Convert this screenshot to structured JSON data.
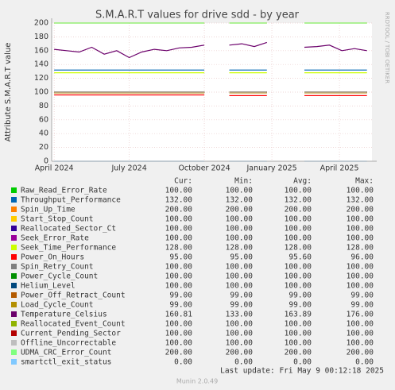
{
  "chart_data": {
    "type": "line",
    "title": "S.M.A.R.T values for drive sdd - by year",
    "y_label": "Attribute S.M.A.R.T value",
    "side_label": "RRDTOOL / TOBI OETIKER",
    "last_update": "Last update: Fri May  9 00:12:18 2025",
    "footer": "Munin 2.0.49",
    "columns": [
      "Cur:",
      "Min:",
      "Avg:",
      "Max:"
    ],
    "ylim": [
      0,
      200
    ],
    "yticks": [
      0,
      20,
      40,
      60,
      80,
      100,
      120,
      140,
      160,
      180,
      200
    ],
    "xlim": [
      -0.1,
      12.7
    ],
    "xticks": [
      {
        "value": 0,
        "label": "April 2024"
      },
      {
        "value": 3,
        "label": "July 2024"
      },
      {
        "value": 6,
        "label": "October 2024"
      },
      {
        "value": 8.7,
        "label": "January 2025"
      },
      {
        "value": 11.4,
        "label": "April 2025"
      }
    ],
    "grid": true,
    "x": [
      0,
      0.5,
      1,
      1.5,
      2,
      2.5,
      3,
      3.5,
      4,
      4.5,
      5,
      5.5,
      6,
      6.5,
      7,
      7.5,
      8,
      8.5,
      9,
      9.5,
      10,
      10.5,
      11,
      11.5,
      12,
      12.5
    ],
    "series": [
      {
        "name": "Raw_Read_Error_Rate",
        "color": "#00cc00",
        "cur": "100.00",
        "min": "100.00",
        "avg": "100.00",
        "max": "100.00",
        "values": [
          100,
          100,
          100,
          100,
          100,
          100,
          100,
          100,
          100,
          100,
          100,
          100,
          100,
          null,
          100,
          100,
          100,
          100,
          null,
          null,
          100,
          100,
          100,
          100,
          100,
          100
        ]
      },
      {
        "name": "Throughput_Performance",
        "color": "#0066b3",
        "cur": "132.00",
        "min": "132.00",
        "avg": "132.00",
        "max": "132.00",
        "values": [
          132,
          132,
          132,
          132,
          132,
          132,
          132,
          132,
          132,
          132,
          132,
          132,
          132,
          null,
          132,
          132,
          132,
          132,
          null,
          null,
          132,
          132,
          132,
          132,
          132,
          132
        ]
      },
      {
        "name": "Spin_Up_Time",
        "color": "#ff8000",
        "cur": "200.00",
        "min": "200.00",
        "avg": "200.00",
        "max": "200.00",
        "values": [
          200,
          200,
          200,
          200,
          200,
          200,
          200,
          200,
          200,
          200,
          200,
          200,
          200,
          null,
          200,
          200,
          200,
          200,
          null,
          null,
          200,
          200,
          200,
          200,
          200,
          200
        ]
      },
      {
        "name": "Start_Stop_Count",
        "color": "#ffcc00",
        "cur": "100.00",
        "min": "100.00",
        "avg": "100.00",
        "max": "100.00",
        "values": [
          100,
          100,
          100,
          100,
          100,
          100,
          100,
          100,
          100,
          100,
          100,
          100,
          100,
          null,
          100,
          100,
          100,
          100,
          null,
          null,
          100,
          100,
          100,
          100,
          100,
          100
        ]
      },
      {
        "name": "Reallocated_Sector_Ct",
        "color": "#330099",
        "cur": "100.00",
        "min": "100.00",
        "avg": "100.00",
        "max": "100.00",
        "values": [
          100,
          100,
          100,
          100,
          100,
          100,
          100,
          100,
          100,
          100,
          100,
          100,
          100,
          null,
          100,
          100,
          100,
          100,
          null,
          null,
          100,
          100,
          100,
          100,
          100,
          100
        ]
      },
      {
        "name": "Seek_Error_Rate",
        "color": "#990099",
        "cur": "100.00",
        "min": "100.00",
        "avg": "100.00",
        "max": "100.00",
        "values": [
          100,
          100,
          100,
          100,
          100,
          100,
          100,
          100,
          100,
          100,
          100,
          100,
          100,
          null,
          100,
          100,
          100,
          100,
          null,
          null,
          100,
          100,
          100,
          100,
          100,
          100
        ]
      },
      {
        "name": "Seek_Time_Performance",
        "color": "#ccff00",
        "cur": "128.00",
        "min": "128.00",
        "avg": "128.00",
        "max": "128.00",
        "values": [
          128,
          128,
          128,
          128,
          128,
          128,
          128,
          128,
          128,
          128,
          128,
          128,
          128,
          null,
          128,
          128,
          128,
          128,
          null,
          null,
          128,
          128,
          128,
          128,
          128,
          128
        ]
      },
      {
        "name": "Power_On_Hours",
        "color": "#ff0000",
        "cur": "95.00",
        "min": "95.00",
        "avg": "95.60",
        "max": "96.00",
        "values": [
          96,
          96,
          96,
          96,
          96,
          96,
          96,
          96,
          96,
          96,
          96,
          96,
          96,
          null,
          95,
          95,
          95,
          95,
          null,
          null,
          95,
          95,
          95,
          95,
          95,
          95
        ]
      },
      {
        "name": "Spin_Retry_Count",
        "color": "#808080",
        "cur": "100.00",
        "min": "100.00",
        "avg": "100.00",
        "max": "100.00",
        "values": [
          100,
          100,
          100,
          100,
          100,
          100,
          100,
          100,
          100,
          100,
          100,
          100,
          100,
          null,
          100,
          100,
          100,
          100,
          null,
          null,
          100,
          100,
          100,
          100,
          100,
          100
        ]
      },
      {
        "name": "Power_Cycle_Count",
        "color": "#008f00",
        "cur": "100.00",
        "min": "100.00",
        "avg": "100.00",
        "max": "100.00",
        "values": [
          100,
          100,
          100,
          100,
          100,
          100,
          100,
          100,
          100,
          100,
          100,
          100,
          100,
          null,
          100,
          100,
          100,
          100,
          null,
          null,
          100,
          100,
          100,
          100,
          100,
          100
        ]
      },
      {
        "name": "Helium_Level",
        "color": "#00487d",
        "cur": "100.00",
        "min": "100.00",
        "avg": "100.00",
        "max": "100.00",
        "values": [
          100,
          100,
          100,
          100,
          100,
          100,
          100,
          100,
          100,
          100,
          100,
          100,
          100,
          null,
          100,
          100,
          100,
          100,
          null,
          null,
          100,
          100,
          100,
          100,
          100,
          100
        ]
      },
      {
        "name": "Power_Off_Retract_Count",
        "color": "#b35a00",
        "cur": "99.00",
        "min": "99.00",
        "avg": "99.00",
        "max": "99.00",
        "values": [
          99,
          99,
          99,
          99,
          99,
          99,
          99,
          99,
          99,
          99,
          99,
          99,
          99,
          null,
          99,
          99,
          99,
          99,
          null,
          null,
          99,
          99,
          99,
          99,
          99,
          99
        ]
      },
      {
        "name": "Load_Cycle_Count",
        "color": "#b38f00",
        "cur": "99.00",
        "min": "99.00",
        "avg": "99.00",
        "max": "99.00",
        "values": [
          99,
          99,
          99,
          99,
          99,
          99,
          99,
          99,
          99,
          99,
          99,
          99,
          99,
          null,
          99,
          99,
          99,
          99,
          null,
          null,
          99,
          99,
          99,
          99,
          99,
          99
        ]
      },
      {
        "name": "Temperature_Celsius",
        "color": "#6b006b",
        "cur": "160.81",
        "min": "133.00",
        "avg": "163.89",
        "max": "176.00",
        "values": [
          162,
          160,
          158,
          165,
          155,
          160,
          150,
          158,
          162,
          160,
          164,
          165,
          168,
          null,
          168,
          170,
          166,
          172,
          null,
          null,
          165,
          166,
          168,
          160,
          163,
          160
        ]
      },
      {
        "name": "Reallocated_Event_Count",
        "color": "#8fb300",
        "cur": "100.00",
        "min": "100.00",
        "avg": "100.00",
        "max": "100.00",
        "values": [
          100,
          100,
          100,
          100,
          100,
          100,
          100,
          100,
          100,
          100,
          100,
          100,
          100,
          null,
          100,
          100,
          100,
          100,
          null,
          null,
          100,
          100,
          100,
          100,
          100,
          100
        ]
      },
      {
        "name": "Current_Pending_Sector",
        "color": "#b30000",
        "cur": "100.00",
        "min": "100.00",
        "avg": "100.00",
        "max": "100.00",
        "values": [
          100,
          100,
          100,
          100,
          100,
          100,
          100,
          100,
          100,
          100,
          100,
          100,
          100,
          null,
          100,
          100,
          100,
          100,
          null,
          null,
          100,
          100,
          100,
          100,
          100,
          100
        ]
      },
      {
        "name": "Offline_Uncorrectable",
        "color": "#bebebe",
        "cur": "100.00",
        "min": "100.00",
        "avg": "100.00",
        "max": "100.00",
        "values": [
          100,
          100,
          100,
          100,
          100,
          100,
          100,
          100,
          100,
          100,
          100,
          100,
          100,
          null,
          100,
          100,
          100,
          100,
          null,
          null,
          100,
          100,
          100,
          100,
          100,
          100
        ]
      },
      {
        "name": "UDMA_CRC_Error_Count",
        "color": "#80ff80",
        "cur": "200.00",
        "min": "200.00",
        "avg": "200.00",
        "max": "200.00",
        "values": [
          200,
          200,
          200,
          200,
          200,
          200,
          200,
          200,
          200,
          200,
          200,
          200,
          200,
          null,
          200,
          200,
          200,
          200,
          null,
          null,
          200,
          200,
          200,
          200,
          200,
          200
        ]
      },
      {
        "name": "smartctl_exit_status",
        "color": "#80c9ff",
        "cur": "0.00",
        "min": "0.00",
        "avg": "0.00",
        "max": "0.00",
        "values": [
          0,
          0,
          0,
          0,
          0,
          0,
          0,
          0,
          0,
          0,
          0,
          0,
          0,
          null,
          0,
          0,
          0,
          0,
          null,
          null,
          0,
          0,
          0,
          0,
          0,
          0
        ]
      }
    ]
  }
}
